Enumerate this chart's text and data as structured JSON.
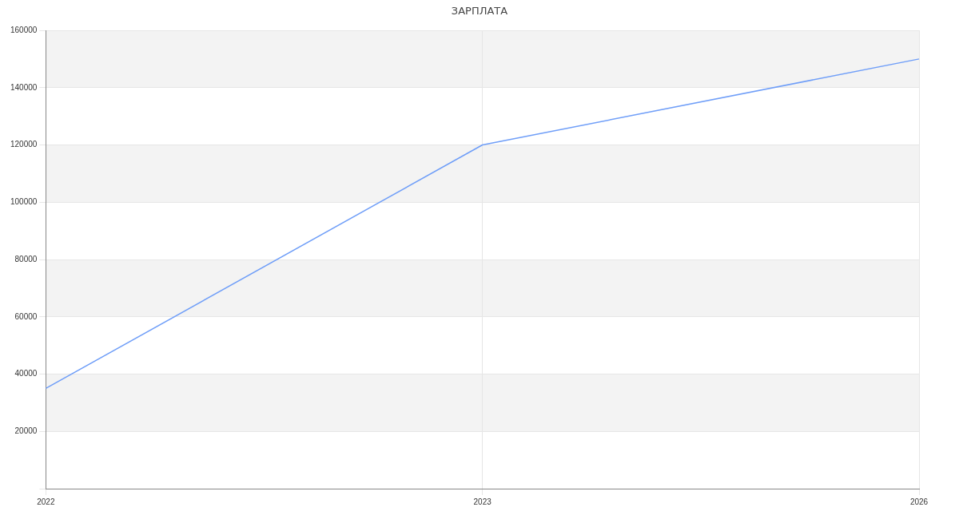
{
  "chart_data": {
    "type": "line",
    "title": "ЗАРПЛАТА",
    "categories": [
      "2022",
      "2023",
      "2026"
    ],
    "series": [
      {
        "color": "#6f9ef8",
        "values": [
          35000,
          120000,
          150000
        ]
      }
    ],
    "ylim": [
      0,
      160000
    ],
    "yticks": [
      {
        "value": 0,
        "label": null
      },
      20000,
      40000,
      60000,
      80000,
      100000,
      120000,
      140000,
      160000
    ],
    "grid": true,
    "legend": false,
    "marker": "none",
    "line_style": "solid"
  }
}
